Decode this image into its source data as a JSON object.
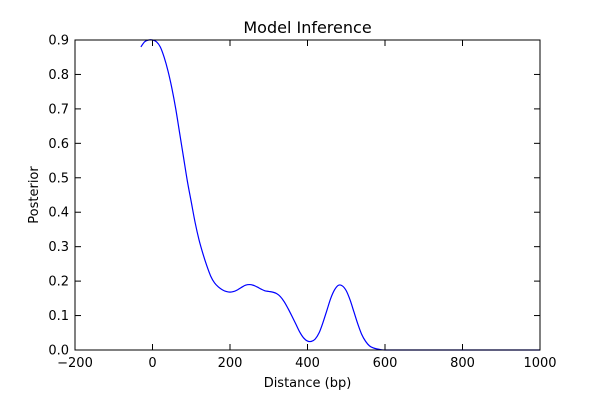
{
  "chart_data": {
    "type": "line",
    "title": "Model Inference",
    "xlabel": "Distance (bp)",
    "ylabel": "Posterior",
    "xlim": [
      -200,
      1000
    ],
    "ylim": [
      0,
      0.9
    ],
    "x_ticks": [
      -200,
      0,
      200,
      400,
      600,
      800,
      1000
    ],
    "x_tick_labels": [
      "−200",
      "0",
      "200",
      "400",
      "600",
      "800",
      "1000"
    ],
    "y_ticks": [
      0.0,
      0.1,
      0.2,
      0.3,
      0.4,
      0.5,
      0.6,
      0.7,
      0.8,
      0.9
    ],
    "y_tick_labels": [
      "0.0",
      "0.1",
      "0.2",
      "0.3",
      "0.4",
      "0.5",
      "0.6",
      "0.7",
      "0.8",
      "0.9"
    ],
    "grid": false,
    "legend": "none",
    "series": [
      {
        "color": "#0000ff",
        "x": [
          -30,
          -20,
          -10,
          0,
          10,
          20,
          30,
          40,
          50,
          60,
          70,
          80,
          90,
          100,
          110,
          120,
          130,
          140,
          150,
          160,
          170,
          180,
          190,
          200,
          210,
          220,
          230,
          240,
          250,
          260,
          270,
          280,
          290,
          300,
          310,
          320,
          330,
          340,
          350,
          360,
          370,
          380,
          390,
          400,
          410,
          420,
          430,
          440,
          450,
          460,
          470,
          480,
          490,
          500,
          510,
          520,
          530,
          540,
          550,
          560,
          570,
          580,
          590,
          600,
          610,
          620,
          630,
          640,
          650,
          660,
          670,
          680,
          700,
          750,
          800,
          850,
          900,
          950,
          1000
        ],
        "y": [
          0.88,
          0.895,
          0.9,
          0.9,
          0.895,
          0.88,
          0.85,
          0.81,
          0.76,
          0.7,
          0.63,
          0.56,
          0.49,
          0.43,
          0.37,
          0.32,
          0.28,
          0.245,
          0.215,
          0.195,
          0.183,
          0.175,
          0.17,
          0.168,
          0.17,
          0.175,
          0.182,
          0.188,
          0.19,
          0.188,
          0.183,
          0.177,
          0.172,
          0.17,
          0.168,
          0.164,
          0.155,
          0.14,
          0.12,
          0.098,
          0.075,
          0.052,
          0.035,
          0.026,
          0.025,
          0.032,
          0.05,
          0.08,
          0.115,
          0.15,
          0.175,
          0.188,
          0.186,
          0.172,
          0.145,
          0.11,
          0.075,
          0.045,
          0.025,
          0.012,
          0.006,
          0.003,
          0.001,
          0.0,
          0.0,
          0.0,
          0.0,
          0.0,
          0.0,
          0.0,
          0.0,
          0.0,
          0.0,
          0.0,
          0.0,
          0.0,
          0.0,
          0.0,
          0.0
        ]
      }
    ]
  }
}
